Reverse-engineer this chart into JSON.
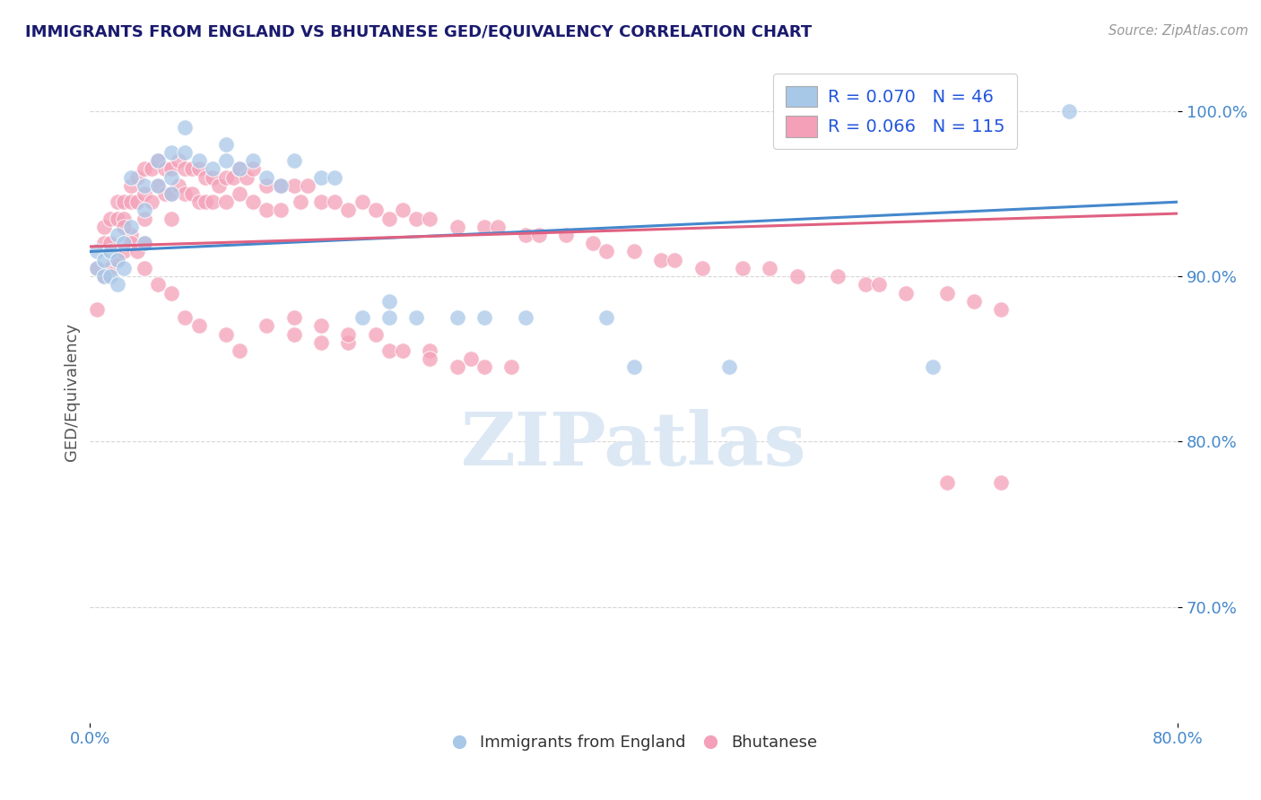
{
  "title": "IMMIGRANTS FROM ENGLAND VS BHUTANESE GED/EQUIVALENCY CORRELATION CHART",
  "source_text": "Source: ZipAtlas.com",
  "ylabel": "GED/Equivalency",
  "xlim": [
    0.0,
    0.8
  ],
  "ylim": [
    0.63,
    1.03
  ],
  "y_tick_values": [
    0.7,
    0.8,
    0.9,
    1.0
  ],
  "y_tick_labels": [
    "70.0%",
    "80.0%",
    "90.0%",
    "100.0%"
  ],
  "x_tick_labels": [
    "0.0%",
    "80.0%"
  ],
  "legend_r1": "R = 0.070",
  "legend_n1": "N = 46",
  "legend_r2": "R = 0.066",
  "legend_n2": "N = 115",
  "blue_color": "#a8c8e8",
  "pink_color": "#f4a0b8",
  "line_blue": "#4488cc",
  "line_pink": "#e06080",
  "title_color": "#1a1a6e",
  "watermark_color": "#dce8f4",
  "blue_scatter_x": [
    0.005,
    0.005,
    0.01,
    0.01,
    0.015,
    0.015,
    0.02,
    0.02,
    0.02,
    0.025,
    0.025,
    0.03,
    0.03,
    0.04,
    0.04,
    0.04,
    0.05,
    0.05,
    0.06,
    0.06,
    0.06,
    0.07,
    0.07,
    0.08,
    0.09,
    0.1,
    0.1,
    0.11,
    0.12,
    0.13,
    0.14,
    0.15,
    0.17,
    0.18,
    0.2,
    0.22,
    0.22,
    0.24,
    0.27,
    0.29,
    0.32,
    0.38,
    0.4,
    0.47,
    0.62,
    0.72
  ],
  "blue_scatter_y": [
    0.905,
    0.915,
    0.91,
    0.9,
    0.915,
    0.9,
    0.925,
    0.91,
    0.895,
    0.92,
    0.905,
    0.93,
    0.96,
    0.955,
    0.94,
    0.92,
    0.97,
    0.955,
    0.96,
    0.95,
    0.975,
    0.975,
    0.99,
    0.97,
    0.965,
    0.98,
    0.97,
    0.965,
    0.97,
    0.96,
    0.955,
    0.97,
    0.96,
    0.96,
    0.875,
    0.885,
    0.875,
    0.875,
    0.875,
    0.875,
    0.875,
    0.875,
    0.845,
    0.845,
    0.845,
    1.0
  ],
  "pink_scatter_x": [
    0.005,
    0.005,
    0.01,
    0.01,
    0.01,
    0.015,
    0.015,
    0.015,
    0.02,
    0.02,
    0.02,
    0.025,
    0.025,
    0.025,
    0.03,
    0.03,
    0.03,
    0.035,
    0.035,
    0.04,
    0.04,
    0.04,
    0.04,
    0.045,
    0.045,
    0.05,
    0.05,
    0.055,
    0.055,
    0.06,
    0.06,
    0.06,
    0.065,
    0.065,
    0.07,
    0.07,
    0.075,
    0.075,
    0.08,
    0.08,
    0.085,
    0.085,
    0.09,
    0.09,
    0.095,
    0.1,
    0.1,
    0.105,
    0.11,
    0.11,
    0.115,
    0.12,
    0.12,
    0.13,
    0.13,
    0.14,
    0.14,
    0.15,
    0.155,
    0.16,
    0.17,
    0.18,
    0.19,
    0.2,
    0.21,
    0.22,
    0.23,
    0.24,
    0.25,
    0.27,
    0.29,
    0.3,
    0.32,
    0.33,
    0.35,
    0.37,
    0.38,
    0.4,
    0.42,
    0.43,
    0.45,
    0.48,
    0.5,
    0.52,
    0.55,
    0.57,
    0.58,
    0.6,
    0.63,
    0.65,
    0.67,
    0.025,
    0.03,
    0.035,
    0.04,
    0.05,
    0.06,
    0.07,
    0.08,
    0.1,
    0.11,
    0.13,
    0.15,
    0.17,
    0.19,
    0.22,
    0.25,
    0.28,
    0.31,
    0.15,
    0.17,
    0.19,
    0.21,
    0.23,
    0.25,
    0.27,
    0.29,
    0.63,
    0.67
  ],
  "pink_scatter_y": [
    0.905,
    0.88,
    0.93,
    0.92,
    0.9,
    0.935,
    0.92,
    0.905,
    0.945,
    0.935,
    0.91,
    0.945,
    0.935,
    0.915,
    0.955,
    0.945,
    0.925,
    0.96,
    0.945,
    0.965,
    0.95,
    0.935,
    0.92,
    0.965,
    0.945,
    0.97,
    0.955,
    0.965,
    0.95,
    0.965,
    0.95,
    0.935,
    0.97,
    0.955,
    0.965,
    0.95,
    0.965,
    0.95,
    0.965,
    0.945,
    0.96,
    0.945,
    0.96,
    0.945,
    0.955,
    0.96,
    0.945,
    0.96,
    0.965,
    0.95,
    0.96,
    0.965,
    0.945,
    0.955,
    0.94,
    0.955,
    0.94,
    0.955,
    0.945,
    0.955,
    0.945,
    0.945,
    0.94,
    0.945,
    0.94,
    0.935,
    0.94,
    0.935,
    0.935,
    0.93,
    0.93,
    0.93,
    0.925,
    0.925,
    0.925,
    0.92,
    0.915,
    0.915,
    0.91,
    0.91,
    0.905,
    0.905,
    0.905,
    0.9,
    0.9,
    0.895,
    0.895,
    0.89,
    0.89,
    0.885,
    0.88,
    0.93,
    0.92,
    0.915,
    0.905,
    0.895,
    0.89,
    0.875,
    0.87,
    0.865,
    0.855,
    0.87,
    0.865,
    0.86,
    0.86,
    0.855,
    0.855,
    0.85,
    0.845,
    0.875,
    0.87,
    0.865,
    0.865,
    0.855,
    0.85,
    0.845,
    0.845,
    0.775,
    0.775
  ]
}
